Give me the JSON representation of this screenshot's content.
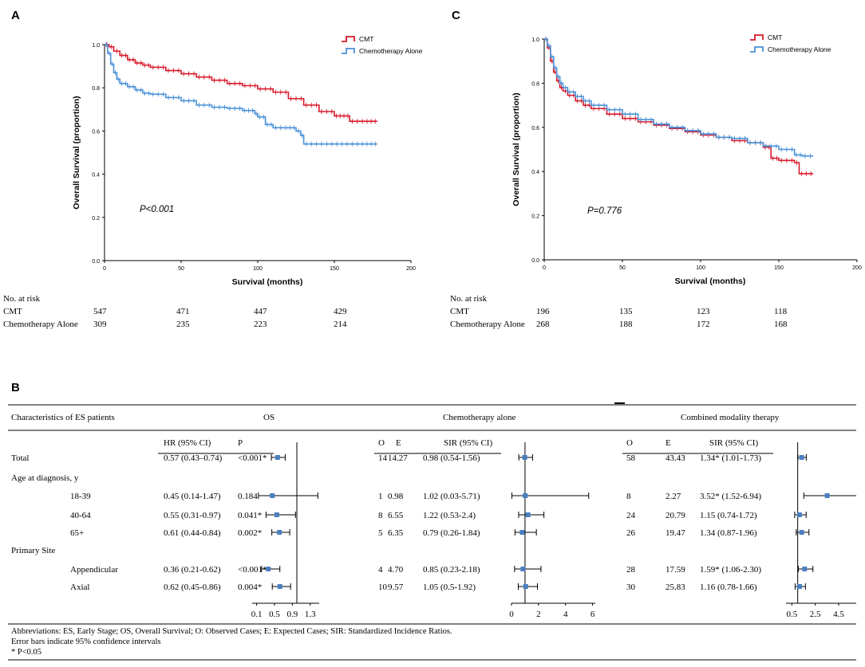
{
  "panels": {
    "a_label": "A",
    "b_label": "B",
    "c_label": "C"
  },
  "colors": {
    "cmt": "#d7182a",
    "chemo": "#4a90d9",
    "marker": "#4a7fc1",
    "axis": "#000000"
  },
  "chart_data": [
    {
      "id": "A",
      "type": "line",
      "title": "",
      "xlabel": "Survival (months)",
      "ylabel": "Overall Survival (proportion)",
      "xlim": [
        0,
        200
      ],
      "ylim": [
        0,
        1.0
      ],
      "xticks": [
        "0",
        "50",
        "100",
        "150",
        "200"
      ],
      "yticks": [
        "0.0",
        "0.2",
        "0.4",
        "0.6",
        "0.8",
        "1.0"
      ],
      "annotation": "P<0.001",
      "series": [
        {
          "name": "CMT",
          "x": [
            0,
            3,
            6,
            10,
            15,
            20,
            25,
            30,
            40,
            50,
            60,
            70,
            80,
            90,
            100,
            110,
            120,
            130,
            140,
            150,
            155,
            160,
            170,
            178
          ],
          "y": [
            1.0,
            0.99,
            0.97,
            0.95,
            0.93,
            0.915,
            0.905,
            0.895,
            0.88,
            0.865,
            0.85,
            0.835,
            0.82,
            0.81,
            0.795,
            0.78,
            0.75,
            0.72,
            0.69,
            0.67,
            0.67,
            0.645,
            0.645,
            0.645
          ]
        },
        {
          "name": "Chemotherapy Alone",
          "x": [
            0,
            2,
            4,
            6,
            8,
            10,
            15,
            20,
            25,
            30,
            40,
            50,
            60,
            70,
            80,
            90,
            98,
            100,
            105,
            110,
            120,
            125,
            128,
            130,
            140,
            150,
            160,
            170,
            178
          ],
          "y": [
            1.0,
            0.96,
            0.91,
            0.87,
            0.84,
            0.82,
            0.805,
            0.79,
            0.775,
            0.77,
            0.755,
            0.74,
            0.72,
            0.71,
            0.705,
            0.695,
            0.68,
            0.665,
            0.63,
            0.615,
            0.615,
            0.6,
            0.58,
            0.54,
            0.54,
            0.54,
            0.54,
            0.54,
            0.54
          ]
        }
      ],
      "risk_table": {
        "header": "No. at risk",
        "rows": [
          {
            "label": "CMT",
            "values": [
              "547",
              "471",
              "447",
              "429"
            ]
          },
          {
            "label": "Chemotherapy Alone",
            "values": [
              "309",
              "235",
              "223",
              "214"
            ]
          }
        ]
      }
    },
    {
      "id": "C",
      "type": "line",
      "title": "",
      "xlabel": "Survival (months)",
      "ylabel": "Overall Survival (proportion)",
      "xlim": [
        0,
        200
      ],
      "ylim": [
        0,
        1.0
      ],
      "xticks": [
        "0",
        "50",
        "100",
        "150",
        "200"
      ],
      "yticks": [
        "0.0",
        "0.2",
        "0.4",
        "0.6",
        "0.8",
        "1.0"
      ],
      "annotation": "P=0.776",
      "series": [
        {
          "name": "CMT",
          "x": [
            0,
            2,
            4,
            6,
            8,
            10,
            12,
            15,
            20,
            25,
            30,
            40,
            50,
            60,
            70,
            80,
            90,
            100,
            110,
            120,
            130,
            140,
            145,
            150,
            160,
            163,
            172
          ],
          "y": [
            1.0,
            0.96,
            0.9,
            0.85,
            0.81,
            0.78,
            0.765,
            0.745,
            0.72,
            0.7,
            0.685,
            0.66,
            0.64,
            0.625,
            0.61,
            0.595,
            0.58,
            0.565,
            0.555,
            0.54,
            0.53,
            0.51,
            0.46,
            0.45,
            0.44,
            0.39,
            0.39
          ]
        },
        {
          "name": "Chemotherapy Alone",
          "x": [
            0,
            2,
            4,
            6,
            8,
            10,
            12,
            15,
            20,
            25,
            30,
            40,
            50,
            60,
            70,
            80,
            90,
            100,
            110,
            120,
            130,
            140,
            150,
            160,
            165,
            172
          ],
          "y": [
            1.0,
            0.97,
            0.92,
            0.87,
            0.83,
            0.8,
            0.78,
            0.76,
            0.74,
            0.72,
            0.7,
            0.68,
            0.66,
            0.635,
            0.615,
            0.6,
            0.585,
            0.57,
            0.555,
            0.55,
            0.53,
            0.515,
            0.5,
            0.475,
            0.47,
            0.47
          ]
        }
      ],
      "risk_table": {
        "header": "No. at risk",
        "rows": [
          {
            "label": "CMT",
            "values": [
              "196",
              "135",
              "123",
              "118"
            ]
          },
          {
            "label": "Chemotherapy Alone",
            "values": [
              "268",
              "188",
              "172",
              "168"
            ]
          }
        ]
      }
    },
    {
      "id": "B",
      "type": "table",
      "headers": {
        "characteristics": "Characteristics of ES patients",
        "os": "OS",
        "chemo": "Chemotherapy alone",
        "combined": "Combined modality therapy",
        "hr": "HR (95% CI)",
        "p": "P",
        "o": "O",
        "e": "E",
        "sir": "SIR (95% CI)"
      },
      "rows": [
        {
          "label": "Total",
          "indent": false,
          "hr": "0.57 (0.43–0.74)",
          "p": "<0.001*",
          "hr_est": 0.57,
          "hr_lo": 0.43,
          "hr_hi": 0.74,
          "c_o": "14",
          "c_e": "14.27",
          "c_sir": "0.98 (0.54-1.56)",
          "c_est": 0.98,
          "c_lo": 0.54,
          "c_hi": 1.56,
          "m_o": "58",
          "m_e": "43.43",
          "m_sir": "1.34* (1.01-1.73)",
          "m_est": 1.34,
          "m_lo": 1.01,
          "m_hi": 1.73
        },
        {
          "label": "Age at diagnosis, y",
          "header": true
        },
        {
          "label": "18-39",
          "indent": true,
          "hr": "0.45 (0.14-1.47)",
          "p": "0.184",
          "hr_est": 0.45,
          "hr_lo": 0.14,
          "hr_hi": 1.47,
          "c_o": "1",
          "c_e": "0.98",
          "c_sir": "1.02 (0.03-5.71)",
          "c_est": 1.02,
          "c_lo": 0.03,
          "c_hi": 5.71,
          "m_o": "8",
          "m_e": "2.27",
          "m_sir": "3.52* (1.52-6.94)",
          "m_est": 3.52,
          "m_lo": 1.52,
          "m_hi": 6.94
        },
        {
          "label": "40-64",
          "indent": true,
          "hr": "0.55 (0.31-0.97)",
          "p": "0.041*",
          "hr_est": 0.55,
          "hr_lo": 0.31,
          "hr_hi": 0.97,
          "c_o": "8",
          "c_e": "6.55",
          "c_sir": "1.22 (0.53-2.4)",
          "c_est": 1.22,
          "c_lo": 0.53,
          "c_hi": 2.4,
          "m_o": "24",
          "m_e": "20.79",
          "m_sir": "1.15  (0.74-1.72)",
          "m_est": 1.15,
          "m_lo": 0.74,
          "m_hi": 1.72
        },
        {
          "label": "65+",
          "indent": true,
          "hr": "0.61 (0.44-0.84)",
          "p": "0.002*",
          "hr_est": 0.61,
          "hr_lo": 0.44,
          "hr_hi": 0.84,
          "c_o": "5",
          "c_e": "6.35",
          "c_sir": "0.79 (0.26-1.84)",
          "c_est": 0.79,
          "c_lo": 0.26,
          "c_hi": 1.84,
          "m_o": "26",
          "m_e": "19.47",
          "m_sir": "1.34  (0.87-1.96)",
          "m_est": 1.34,
          "m_lo": 0.87,
          "m_hi": 1.96
        },
        {
          "label": "Primary Site",
          "header": true
        },
        {
          "label": "Appendicular",
          "indent": true,
          "hr": "0.36 (0.21-0.62)",
          "p": "<0.001*",
          "hr_est": 0.36,
          "hr_lo": 0.21,
          "hr_hi": 0.62,
          "c_o": "4",
          "c_e": "4.70",
          "c_sir": "0.85 (0.23-2.18)",
          "c_est": 0.85,
          "c_lo": 0.23,
          "c_hi": 2.18,
          "m_o": "28",
          "m_e": "17.59",
          "m_sir": "1.59* (1.06-2.30)",
          "m_est": 1.59,
          "m_lo": 1.06,
          "m_hi": 2.3
        },
        {
          "label": "Axial",
          "indent": true,
          "hr": "0.62 (0.45-0.86)",
          "p": "0.004*",
          "hr_est": 0.62,
          "hr_lo": 0.45,
          "hr_hi": 0.86,
          "c_o": "10",
          "c_e": "9.57",
          "c_sir": "1.05 (0.5-1.92)",
          "c_est": 1.05,
          "c_lo": 0.5,
          "c_hi": 1.92,
          "m_o": "30",
          "m_e": "25.83",
          "m_sir": "1.16  (0.78-1.66)",
          "m_est": 1.16,
          "m_lo": 0.78,
          "m_hi": 1.66
        }
      ],
      "os_axis": {
        "ticks": [
          "0.1",
          "0.5",
          "0.9",
          "1.3"
        ],
        "values": [
          0.1,
          0.5,
          0.9,
          1.3
        ],
        "min": 0.0,
        "max": 1.5,
        "ref": 1.0
      },
      "chemo_axis": {
        "ticks": [
          "0",
          "2",
          "4",
          "6"
        ],
        "values": [
          0,
          2,
          4,
          6
        ],
        "min": 0.0,
        "max": 6.2,
        "ref": 1.0
      },
      "combined_axis": {
        "ticks": [
          "0.5",
          "2.5",
          "4.5"
        ],
        "values": [
          0.5,
          2.5,
          4.5
        ],
        "min": 0.0,
        "max": 6.0,
        "ref": 1.0
      },
      "footnotes": [
        "Abbreviations: ES, Early Stage; OS, Overall Survival; O: Observed Cases; E: Expected Cases; SIR: Standardized Incidence Ratios.",
        "Error bars indicate 95% confidence intervals",
        "* P<0.05"
      ]
    }
  ]
}
